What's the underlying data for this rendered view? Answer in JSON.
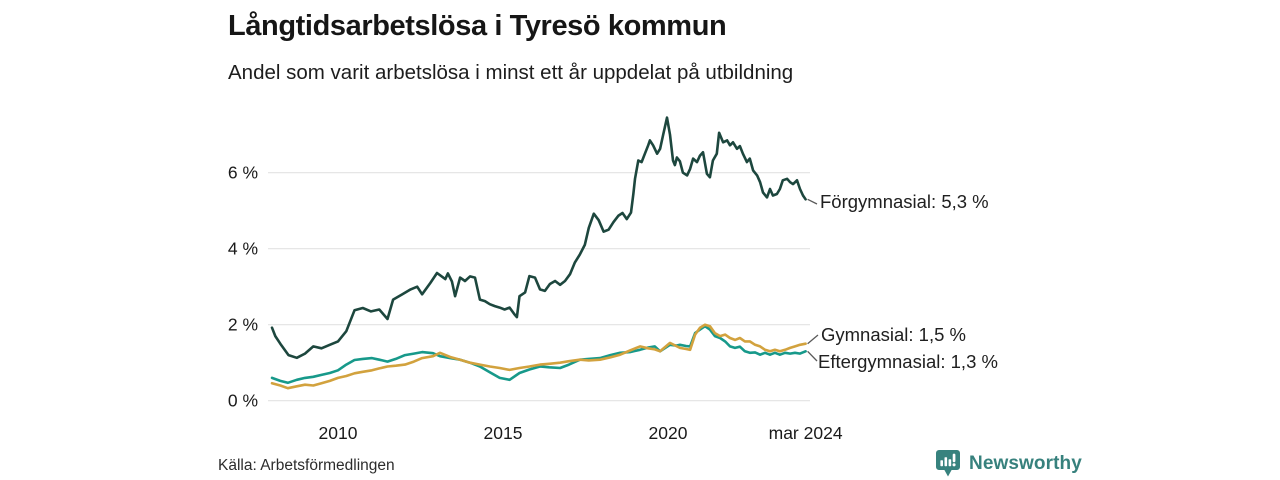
{
  "chart_data": {
    "type": "line",
    "title": "Långtidsarbetslösa i Tyresö kommun",
    "subtitle": "Andel som varit arbetslösa i minst ett år uppdelat på utbildning",
    "source": "Källa: Arbetsförmedlingen",
    "grid": "horizontal-only",
    "legend_position": "line-end-labels-right",
    "x_axis": {
      "range": [
        2007.9,
        2024.45
      ],
      "ticks": [
        {
          "label": "2010",
          "year": 2010
        },
        {
          "label": "2015",
          "year": 2015
        },
        {
          "label": "2020",
          "year": 2020
        },
        {
          "label": "mar 2024",
          "year": 2024.17
        }
      ]
    },
    "y_axis": {
      "unit": "%",
      "range": [
        0,
        7.8
      ],
      "ticks": [
        {
          "label": "0 %",
          "value": 0
        },
        {
          "label": "2 %",
          "value": 2
        },
        {
          "label": "4 %",
          "value": 4
        },
        {
          "label": "6 %",
          "value": 6
        }
      ]
    },
    "series": [
      {
        "id": "forgymnasial",
        "name": "Förgymnasial",
        "end_label": "Förgymnasial: 5,3 %",
        "end_value": 5.3,
        "color": "#1d473e",
        "points": [
          [
            2008.0,
            1.92
          ],
          [
            2008.1,
            1.7
          ],
          [
            2008.25,
            1.5
          ],
          [
            2008.5,
            1.2
          ],
          [
            2008.75,
            1.13
          ],
          [
            2009.0,
            1.24
          ],
          [
            2009.25,
            1.43
          ],
          [
            2009.5,
            1.38
          ],
          [
            2009.75,
            1.47
          ],
          [
            2010.0,
            1.56
          ],
          [
            2010.25,
            1.83
          ],
          [
            2010.5,
            2.38
          ],
          [
            2010.75,
            2.44
          ],
          [
            2011.0,
            2.35
          ],
          [
            2011.25,
            2.4
          ],
          [
            2011.5,
            2.15
          ],
          [
            2011.67,
            2.66
          ],
          [
            2011.95,
            2.8
          ],
          [
            2012.2,
            2.93
          ],
          [
            2012.4,
            3.0
          ],
          [
            2012.55,
            2.8
          ],
          [
            2012.8,
            3.1
          ],
          [
            2013.0,
            3.36
          ],
          [
            2013.25,
            3.2
          ],
          [
            2013.33,
            3.35
          ],
          [
            2013.45,
            3.14
          ],
          [
            2013.55,
            2.75
          ],
          [
            2013.7,
            3.24
          ],
          [
            2013.85,
            3.15
          ],
          [
            2014.0,
            3.27
          ],
          [
            2014.15,
            3.24
          ],
          [
            2014.3,
            2.66
          ],
          [
            2014.45,
            2.62
          ],
          [
            2014.6,
            2.54
          ],
          [
            2014.75,
            2.49
          ],
          [
            2014.9,
            2.45
          ],
          [
            2015.05,
            2.4
          ],
          [
            2015.2,
            2.45
          ],
          [
            2015.35,
            2.27
          ],
          [
            2015.42,
            2.2
          ],
          [
            2015.5,
            2.75
          ],
          [
            2015.67,
            2.85
          ],
          [
            2015.8,
            3.28
          ],
          [
            2015.97,
            3.24
          ],
          [
            2016.12,
            2.93
          ],
          [
            2016.27,
            2.89
          ],
          [
            2016.42,
            3.07
          ],
          [
            2016.58,
            3.15
          ],
          [
            2016.73,
            3.05
          ],
          [
            2016.88,
            3.15
          ],
          [
            2017.03,
            3.33
          ],
          [
            2017.18,
            3.64
          ],
          [
            2017.33,
            3.85
          ],
          [
            2017.48,
            4.1
          ],
          [
            2017.6,
            4.55
          ],
          [
            2017.75,
            4.92
          ],
          [
            2017.9,
            4.75
          ],
          [
            2018.05,
            4.45
          ],
          [
            2018.2,
            4.5
          ],
          [
            2018.35,
            4.7
          ],
          [
            2018.5,
            4.87
          ],
          [
            2018.62,
            4.94
          ],
          [
            2018.75,
            4.78
          ],
          [
            2018.88,
            4.95
          ],
          [
            2018.95,
            5.45
          ],
          [
            2019.0,
            5.84
          ],
          [
            2019.1,
            6.32
          ],
          [
            2019.2,
            6.28
          ],
          [
            2019.3,
            6.5
          ],
          [
            2019.4,
            6.72
          ],
          [
            2019.45,
            6.85
          ],
          [
            2019.55,
            6.72
          ],
          [
            2019.67,
            6.5
          ],
          [
            2019.76,
            6.63
          ],
          [
            2019.85,
            6.98
          ],
          [
            2019.97,
            7.45
          ],
          [
            2020.06,
            7.0
          ],
          [
            2020.15,
            6.32
          ],
          [
            2020.21,
            6.2
          ],
          [
            2020.27,
            6.4
          ],
          [
            2020.36,
            6.3
          ],
          [
            2020.45,
            6.0
          ],
          [
            2020.58,
            5.93
          ],
          [
            2020.67,
            6.1
          ],
          [
            2020.76,
            6.37
          ],
          [
            2020.88,
            6.28
          ],
          [
            2020.97,
            6.45
          ],
          [
            2021.06,
            6.54
          ],
          [
            2021.18,
            5.97
          ],
          [
            2021.27,
            5.88
          ],
          [
            2021.36,
            6.32
          ],
          [
            2021.48,
            6.5
          ],
          [
            2021.55,
            7.05
          ],
          [
            2021.67,
            6.8
          ],
          [
            2021.79,
            6.85
          ],
          [
            2021.88,
            6.72
          ],
          [
            2021.97,
            6.8
          ],
          [
            2022.09,
            6.63
          ],
          [
            2022.18,
            6.7
          ],
          [
            2022.27,
            6.5
          ],
          [
            2022.39,
            6.28
          ],
          [
            2022.48,
            6.37
          ],
          [
            2022.58,
            6.06
          ],
          [
            2022.7,
            5.93
          ],
          [
            2022.79,
            5.75
          ],
          [
            2022.88,
            5.48
          ],
          [
            2023.0,
            5.35
          ],
          [
            2023.09,
            5.57
          ],
          [
            2023.18,
            5.4
          ],
          [
            2023.3,
            5.44
          ],
          [
            2023.39,
            5.57
          ],
          [
            2023.48,
            5.8
          ],
          [
            2023.61,
            5.84
          ],
          [
            2023.7,
            5.75
          ],
          [
            2023.79,
            5.7
          ],
          [
            2023.91,
            5.8
          ],
          [
            2024.0,
            5.57
          ],
          [
            2024.09,
            5.4
          ],
          [
            2024.17,
            5.3
          ]
        ]
      },
      {
        "id": "gymnasial",
        "name": "Gymnasial",
        "end_label": "Gymnasial: 1,5 %",
        "end_value": 1.5,
        "color": "#d2a23e",
        "points": [
          [
            2008.0,
            0.46
          ],
          [
            2008.25,
            0.4
          ],
          [
            2008.48,
            0.33
          ],
          [
            2008.75,
            0.38
          ],
          [
            2009.0,
            0.42
          ],
          [
            2009.25,
            0.4
          ],
          [
            2009.5,
            0.46
          ],
          [
            2009.75,
            0.52
          ],
          [
            2010.0,
            0.6
          ],
          [
            2010.25,
            0.65
          ],
          [
            2010.5,
            0.72
          ],
          [
            2010.75,
            0.76
          ],
          [
            2011.03,
            0.8
          ],
          [
            2011.25,
            0.85
          ],
          [
            2011.5,
            0.9
          ],
          [
            2011.75,
            0.92
          ],
          [
            2012.03,
            0.95
          ],
          [
            2012.3,
            1.03
          ],
          [
            2012.55,
            1.12
          ],
          [
            2012.88,
            1.17
          ],
          [
            2013.09,
            1.26
          ],
          [
            2013.4,
            1.15
          ],
          [
            2013.7,
            1.08
          ],
          [
            2014.0,
            1.0
          ],
          [
            2014.3,
            0.95
          ],
          [
            2014.6,
            0.9
          ],
          [
            2014.9,
            0.86
          ],
          [
            2015.2,
            0.81
          ],
          [
            2015.5,
            0.86
          ],
          [
            2015.8,
            0.9
          ],
          [
            2016.12,
            0.95
          ],
          [
            2016.4,
            0.97
          ],
          [
            2016.73,
            1.0
          ],
          [
            2017.0,
            1.04
          ],
          [
            2017.33,
            1.08
          ],
          [
            2017.6,
            1.06
          ],
          [
            2017.94,
            1.08
          ],
          [
            2018.25,
            1.14
          ],
          [
            2018.55,
            1.21
          ],
          [
            2018.85,
            1.32
          ],
          [
            2019.15,
            1.43
          ],
          [
            2019.4,
            1.38
          ],
          [
            2019.6,
            1.35
          ],
          [
            2019.76,
            1.3
          ],
          [
            2020.06,
            1.52
          ],
          [
            2020.36,
            1.39
          ],
          [
            2020.55,
            1.36
          ],
          [
            2020.67,
            1.34
          ],
          [
            2020.82,
            1.74
          ],
          [
            2020.97,
            1.92
          ],
          [
            2021.12,
            2.0
          ],
          [
            2021.27,
            1.96
          ],
          [
            2021.42,
            1.78
          ],
          [
            2021.58,
            1.7
          ],
          [
            2021.73,
            1.74
          ],
          [
            2021.88,
            1.65
          ],
          [
            2022.03,
            1.6
          ],
          [
            2022.18,
            1.65
          ],
          [
            2022.33,
            1.56
          ],
          [
            2022.48,
            1.56
          ],
          [
            2022.64,
            1.47
          ],
          [
            2022.79,
            1.43
          ],
          [
            2022.94,
            1.34
          ],
          [
            2023.09,
            1.3
          ],
          [
            2023.24,
            1.34
          ],
          [
            2023.39,
            1.3
          ],
          [
            2023.55,
            1.34
          ],
          [
            2023.7,
            1.39
          ],
          [
            2023.85,
            1.43
          ],
          [
            2024.0,
            1.47
          ],
          [
            2024.17,
            1.5
          ]
        ]
      },
      {
        "id": "eftergymnasial",
        "name": "Eftergymnasial",
        "end_label": "Eftergymnasial: 1,3 %",
        "end_value": 1.3,
        "color": "#17998a",
        "points": [
          [
            2008.0,
            0.6
          ],
          [
            2008.25,
            0.52
          ],
          [
            2008.48,
            0.47
          ],
          [
            2008.75,
            0.55
          ],
          [
            2009.0,
            0.6
          ],
          [
            2009.25,
            0.63
          ],
          [
            2009.5,
            0.68
          ],
          [
            2009.75,
            0.73
          ],
          [
            2010.0,
            0.8
          ],
          [
            2010.25,
            0.95
          ],
          [
            2010.5,
            1.07
          ],
          [
            2010.75,
            1.1
          ],
          [
            2011.03,
            1.12
          ],
          [
            2011.25,
            1.08
          ],
          [
            2011.5,
            1.03
          ],
          [
            2011.75,
            1.1
          ],
          [
            2012.03,
            1.2
          ],
          [
            2012.3,
            1.24
          ],
          [
            2012.55,
            1.28
          ],
          [
            2012.88,
            1.25
          ],
          [
            2013.09,
            1.17
          ],
          [
            2013.4,
            1.12
          ],
          [
            2013.7,
            1.08
          ],
          [
            2014.0,
            1.0
          ],
          [
            2014.3,
            0.9
          ],
          [
            2014.6,
            0.75
          ],
          [
            2014.9,
            0.6
          ],
          [
            2015.2,
            0.55
          ],
          [
            2015.5,
            0.73
          ],
          [
            2015.8,
            0.82
          ],
          [
            2016.12,
            0.9
          ],
          [
            2016.4,
            0.88
          ],
          [
            2016.73,
            0.86
          ],
          [
            2017.0,
            0.95
          ],
          [
            2017.33,
            1.08
          ],
          [
            2017.6,
            1.1
          ],
          [
            2017.94,
            1.12
          ],
          [
            2018.25,
            1.2
          ],
          [
            2018.55,
            1.26
          ],
          [
            2018.85,
            1.28
          ],
          [
            2019.15,
            1.34
          ],
          [
            2019.4,
            1.4
          ],
          [
            2019.6,
            1.43
          ],
          [
            2019.76,
            1.3
          ],
          [
            2020.06,
            1.47
          ],
          [
            2020.25,
            1.45
          ],
          [
            2020.36,
            1.47
          ],
          [
            2020.55,
            1.44
          ],
          [
            2020.67,
            1.43
          ],
          [
            2020.82,
            1.78
          ],
          [
            2020.97,
            1.87
          ],
          [
            2021.12,
            1.96
          ],
          [
            2021.27,
            1.87
          ],
          [
            2021.42,
            1.7
          ],
          [
            2021.58,
            1.65
          ],
          [
            2021.73,
            1.56
          ],
          [
            2021.88,
            1.43
          ],
          [
            2022.03,
            1.39
          ],
          [
            2022.18,
            1.42
          ],
          [
            2022.33,
            1.3
          ],
          [
            2022.48,
            1.26
          ],
          [
            2022.64,
            1.27
          ],
          [
            2022.79,
            1.21
          ],
          [
            2022.94,
            1.26
          ],
          [
            2023.09,
            1.21
          ],
          [
            2023.24,
            1.26
          ],
          [
            2023.39,
            1.21
          ],
          [
            2023.55,
            1.26
          ],
          [
            2023.7,
            1.24
          ],
          [
            2023.85,
            1.26
          ],
          [
            2024.0,
            1.24
          ],
          [
            2024.17,
            1.3
          ]
        ]
      }
    ]
  },
  "branding": {
    "wordmark": "Newsworthy",
    "color": "#37817d"
  }
}
